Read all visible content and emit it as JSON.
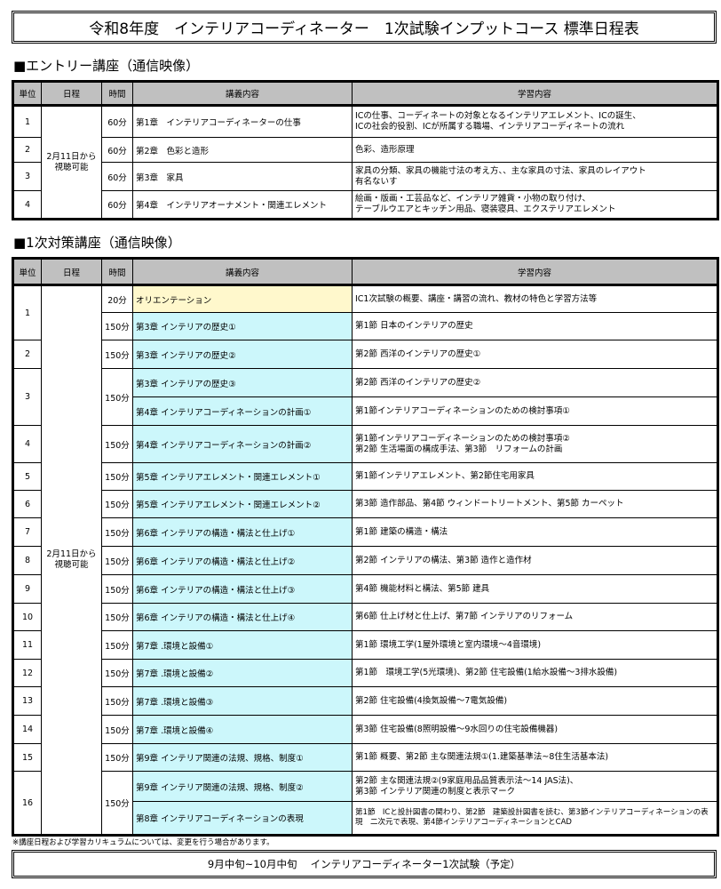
{
  "title": "令和8年度　インテリアコーディネーター　1次試験インプットコース 標準日程表",
  "headers": {
    "unit": "単位",
    "schedule": "日程",
    "time": "時間",
    "lecture": "講義内容",
    "content": "学習内容"
  },
  "entry": {
    "heading": "■エントリー講座（通信映像）",
    "schedule": "2月11日から\n視聴可能",
    "units": [
      {
        "unit": "1",
        "rows": [
          {
            "time": "60分",
            "lecture": "第1章　インテリアコーディネーターの仕事",
            "content": "ICの仕事、コーディネートの対象となるインテリアエレメント、ICの誕生、\nICの社会的役割、ICが所属する職場、インテリアコーディネートの流れ"
          }
        ]
      },
      {
        "unit": "2",
        "rows": [
          {
            "time": "60分",
            "lecture": "第2章　色彩と造形",
            "content": "色彩、造形原理"
          }
        ]
      },
      {
        "unit": "3",
        "rows": [
          {
            "time": "60分",
            "lecture": "第3章　家具",
            "content": "家具の分類、家具の機能寸法の考え方、、主な家具の寸法、家具のレイアウト\n有名ないす"
          }
        ]
      },
      {
        "unit": "4",
        "rows": [
          {
            "time": "60分",
            "lecture": "第4章　インテリアオーナメント・関連エレメント",
            "content": "絵画・版画・工芸品など、インテリア雑貨・小物の取り付け、\nテーブルウエアとキッチン用品、寝装寝具、エクステリアエレメント"
          }
        ]
      }
    ]
  },
  "first": {
    "heading": "■1次対策講座（通信映像）",
    "schedule": "2月11日から\n視聴可能",
    "units": [
      {
        "unit": "1",
        "rows": [
          {
            "time": "20分",
            "lecture": "オリエンテーション",
            "content": "IC1次試験の概要、講座・講習の流れ、教材の特色と学習方法等",
            "highlight": "yellow"
          },
          {
            "time": "150分",
            "lecture": "第3章 インテリアの歴史①",
            "content": "第1節 日本のインテリアの歴史"
          }
        ]
      },
      {
        "unit": "2",
        "rows": [
          {
            "time": "150分",
            "lecture": "第3章 インテリアの歴史②",
            "content": "第2節 西洋のインテリアの歴史①"
          }
        ]
      },
      {
        "unit": "3",
        "time": "150分",
        "rows": [
          {
            "lecture": "第3章 インテリアの歴史③",
            "content": "第2節 西洋のインテリアの歴史②"
          },
          {
            "lecture": "第4章 インテリアコーディネーションの計画①",
            "content": "第1節インテリアコーディネーションのための検討事項①"
          }
        ]
      },
      {
        "unit": "4",
        "rows": [
          {
            "time": "150分",
            "lecture": "第4章 インテリアコーディネーションの計画②",
            "content": "第1節インテリアコーディネーションのための検討事項②\n第2節 生活場面の構成手法、第3節　リフォームの計画"
          }
        ]
      },
      {
        "unit": "5",
        "rows": [
          {
            "time": "150分",
            "lecture": "第5章 インテリアエレメント・関連エレメント①",
            "content": "第1節インテリアエレメント、第2節住宅用家具"
          }
        ]
      },
      {
        "unit": "6",
        "rows": [
          {
            "time": "150分",
            "lecture": "第5章 インテリアエレメント・関連エレメント②",
            "content": "第3節 造作部品、第4節 ウィンドートリートメント、第5節 カーペット"
          }
        ]
      },
      {
        "unit": "7",
        "rows": [
          {
            "time": "150分",
            "lecture": "第6章 インテリアの構造・構法と仕上げ①",
            "content": "第1節 建築の構造・構法"
          }
        ]
      },
      {
        "unit": "8",
        "rows": [
          {
            "time": "150分",
            "lecture": "第6章 インテリアの構造・構法と仕上げ②",
            "content": "第2節 インテリアの構法、第3節 造作と造作材"
          }
        ]
      },
      {
        "unit": "9",
        "rows": [
          {
            "time": "150分",
            "lecture": "第6章 インテリアの構造・構法と仕上げ③",
            "content": "第4節 機能材料と構法、第5節 建具"
          }
        ]
      },
      {
        "unit": "10",
        "rows": [
          {
            "time": "150分",
            "lecture": "第6章 インテリアの構造・構法と仕上げ④",
            "content": "第6節 仕上げ材と仕上げ、第7節 インテリアのリフォーム"
          }
        ]
      },
      {
        "unit": "11",
        "rows": [
          {
            "time": "150分",
            "lecture": "第7章 .環境と設備①",
            "content": "第1節 環境工学(1屋外環境と室内環境～4音環境)"
          }
        ]
      },
      {
        "unit": "12",
        "rows": [
          {
            "time": "150分",
            "lecture": "第7章 .環境と設備②",
            "content": "第1節　環境工学(5光環境)、第2節 住宅設備(1給水設備～3排水設備)"
          }
        ]
      },
      {
        "unit": "13",
        "rows": [
          {
            "time": "150分",
            "lecture": "第7章 .環境と設備③",
            "content": "第2節 住宅設備(4換気設備～7電気設備)"
          }
        ]
      },
      {
        "unit": "14",
        "rows": [
          {
            "time": "150分",
            "lecture": "第7章 .環境と設備④",
            "content": "第3節 住宅設備(8照明設備～9水回りの住宅設備機器)"
          }
        ]
      },
      {
        "unit": "15",
        "rows": [
          {
            "time": "150分",
            "lecture": "第9章 インテリア関連の法規、規格、制度①",
            "content": "第1節 概要、第2節 主な関連法規①(1.建築基準法~8住生活基本法)"
          }
        ]
      },
      {
        "unit": "16",
        "time": "150分",
        "rows": [
          {
            "lecture": "第9章 インテリア関連の法規、規格、制度②",
            "content": "第2節 主な関連法規②(9家庭用品品質表示法～14 JAS法)、\n第3節 インテリア関連の制度と表示マーク"
          },
          {
            "lecture": "第8章 インテリアコーディネーションの表現",
            "content": "第1節　ICと設計図書の関わり、第2節　建築設計図書を読む、第3節インテリアコーディネーションの表現　二次元で表現、第4節インテリアコーディネーションとCAD",
            "small": true
          }
        ]
      }
    ]
  },
  "note": "※講座日程および学習カリキュラムについては、変更を行う場合があります。",
  "exam": "9月中旬~10月中旬　 インテリアコーディネーター1次試験（予定）",
  "colors": {
    "header": "#c0c0c0",
    "lecture": "#ccf7fb",
    "orientation": "#fff8cc"
  }
}
